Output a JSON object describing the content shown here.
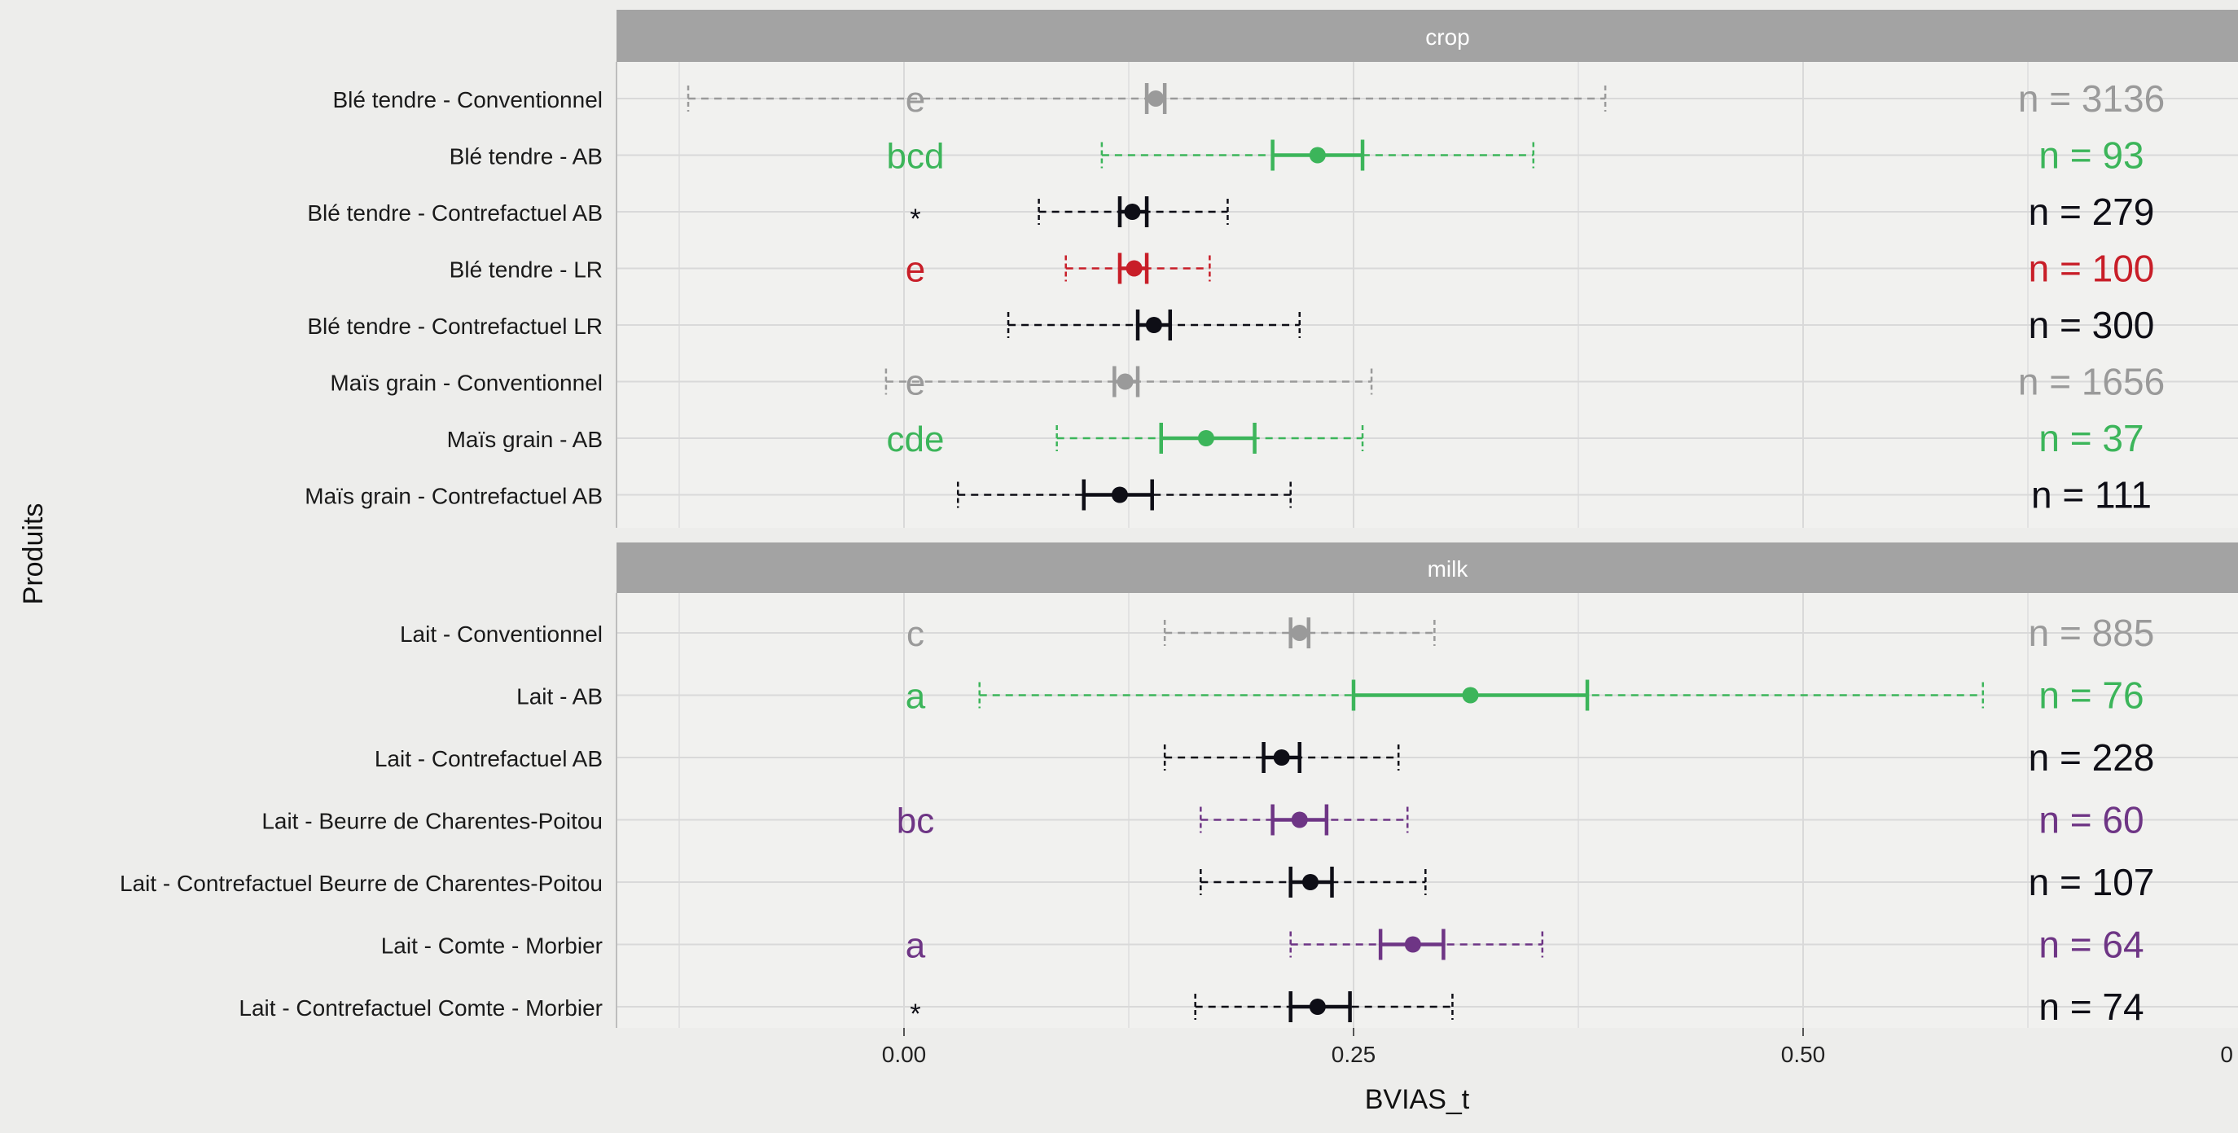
{
  "y_axis_title": "Produits",
  "x_axis_title": "BVIAS_t",
  "x_ticks": [
    "0.00",
    "0.25",
    "0.50",
    "0"
  ],
  "colors": {
    "conventional": "#9a9a9a",
    "ab": "#3cb55a",
    "counterfactual": "#0e0e16",
    "label_rouge": "#c81e28",
    "aoc": "#6e3585",
    "strip": "#a3a3a3",
    "panel": "#f1f1ef",
    "grid": "#d9d9d9"
  },
  "chart_data": {
    "type": "errorbar",
    "x_variable": "BVIAS_t",
    "y_variable": "Produits",
    "xlim": [
      -0.12,
      0.74
    ],
    "grid": true,
    "legend": "none",
    "panels": [
      {
        "strip": "crop",
        "rows": [
          {
            "label": "Blé tendre - Conventionnel",
            "color": "#9a9a9a",
            "range": [
              -0.12,
              0.39
            ],
            "ci": [
              0.135,
              0.145
            ],
            "mean": 0.14,
            "letter": "e",
            "n": "n = 3136"
          },
          {
            "label": "Blé tendre - AB",
            "color": "#3cb55a",
            "range": [
              0.11,
              0.35
            ],
            "ci": [
              0.205,
              0.255
            ],
            "mean": 0.23,
            "letter": "bcd",
            "n": "n = 93"
          },
          {
            "label": "Blé tendre - Contrefactuel AB",
            "color": "#0e0e16",
            "range": [
              0.075,
              0.18
            ],
            "ci": [
              0.12,
              0.135
            ],
            "mean": 0.127,
            "letter": "*",
            "n": "n = 279"
          },
          {
            "label": "Blé tendre - LR",
            "color": "#c81e28",
            "range": [
              0.09,
              0.17
            ],
            "ci": [
              0.12,
              0.135
            ],
            "mean": 0.128,
            "letter": "e",
            "n": "n = 100"
          },
          {
            "label": "Blé tendre - Contrefactuel LR",
            "color": "#0e0e16",
            "range": [
              0.058,
              0.22
            ],
            "ci": [
              0.13,
              0.148
            ],
            "mean": 0.139,
            "letter": "",
            "n": "n = 300"
          },
          {
            "label": "Maïs grain - Conventionnel",
            "color": "#9a9a9a",
            "range": [
              -0.01,
              0.26
            ],
            "ci": [
              0.117,
              0.13
            ],
            "mean": 0.123,
            "letter": "e",
            "n": "n = 1656"
          },
          {
            "label": "Maïs grain - AB",
            "color": "#3cb55a",
            "range": [
              0.085,
              0.255
            ],
            "ci": [
              0.143,
              0.195
            ],
            "mean": 0.168,
            "letter": "cde",
            "n": "n = 37"
          },
          {
            "label": "Maïs grain - Contrefactuel AB",
            "color": "#0e0e16",
            "range": [
              0.03,
              0.215
            ],
            "ci": [
              0.1,
              0.138
            ],
            "mean": 0.12,
            "letter": "",
            "n": "n = 111"
          }
        ]
      },
      {
        "strip": "milk",
        "rows": [
          {
            "label": "Lait - Conventionnel",
            "color": "#9a9a9a",
            "range": [
              0.145,
              0.295
            ],
            "ci": [
              0.215,
              0.225
            ],
            "mean": 0.22,
            "letter": "c",
            "n": "n = 885"
          },
          {
            "label": "Lait - AB",
            "color": "#3cb55a",
            "range": [
              0.042,
              0.6
            ],
            "ci": [
              0.25,
              0.38
            ],
            "mean": 0.315,
            "letter": "a",
            "n": "n = 76"
          },
          {
            "label": "Lait - Contrefactuel AB",
            "color": "#0e0e16",
            "range": [
              0.145,
              0.275
            ],
            "ci": [
              0.2,
              0.22
            ],
            "mean": 0.21,
            "letter": "",
            "n": "n = 228"
          },
          {
            "label": "Lait - Beurre de Charentes-Poitou",
            "color": "#6e3585",
            "range": [
              0.165,
              0.28
            ],
            "ci": [
              0.205,
              0.235
            ],
            "mean": 0.22,
            "letter": "bc",
            "n": "n = 60"
          },
          {
            "label": "Lait - Contrefactuel Beurre de Charentes-Poitou",
            "color": "#0e0e16",
            "range": [
              0.165,
              0.29
            ],
            "ci": [
              0.215,
              0.238
            ],
            "mean": 0.226,
            "letter": "",
            "n": "n = 107"
          },
          {
            "label": "Lait - Comte - Morbier",
            "color": "#6e3585",
            "range": [
              0.215,
              0.355
            ],
            "ci": [
              0.265,
              0.3
            ],
            "mean": 0.283,
            "letter": "a",
            "n": "n = 64"
          },
          {
            "label": "Lait - Contrefactuel Comte - Morbier",
            "color": "#0e0e16",
            "range": [
              0.162,
              0.305
            ],
            "ci": [
              0.215,
              0.248
            ],
            "mean": 0.23,
            "letter": "*",
            "n": "n = 74"
          }
        ]
      }
    ]
  }
}
